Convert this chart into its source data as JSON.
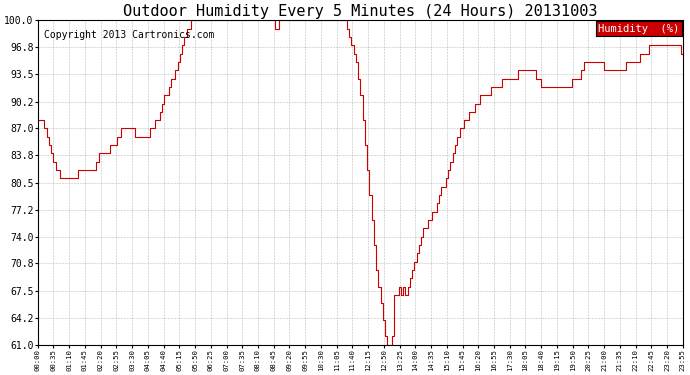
{
  "title": "Outdoor Humidity Every 5 Minutes (24 Hours) 20131003",
  "copyright": "Copyright 2013 Cartronics.com",
  "legend_label": "Humidity  (%)",
  "ylim": [
    61.0,
    100.0
  ],
  "yticks": [
    61.0,
    64.2,
    67.5,
    70.8,
    74.0,
    77.2,
    80.5,
    83.8,
    87.0,
    90.2,
    93.5,
    96.8,
    100.0
  ],
  "line_color": "#cc0000",
  "bg_color": "#ffffff",
  "grid_color": "#aaaaaa",
  "title_color": "#000000",
  "title_fontsize": 11,
  "copyright_fontsize": 7,
  "legend_bg": "#cc0000",
  "legend_text_color": "#ffffff",
  "xtick_labels": [
    "00:00",
    "00:35",
    "01:10",
    "01:45",
    "02:20",
    "02:55",
    "03:30",
    "04:05",
    "04:40",
    "05:15",
    "05:50",
    "06:25",
    "07:00",
    "07:35",
    "08:10",
    "08:45",
    "09:20",
    "09:55",
    "10:30",
    "11:05",
    "11:40",
    "12:15",
    "12:50",
    "13:25",
    "14:00",
    "14:35",
    "15:10",
    "15:45",
    "16:20",
    "16:55",
    "17:30",
    "18:05",
    "18:40",
    "19:15",
    "19:50",
    "20:25",
    "21:00",
    "21:35",
    "22:10",
    "22:45",
    "23:20",
    "23:55"
  ],
  "humidity_values": [
    88,
    88,
    88,
    87,
    86,
    85,
    84,
    83,
    82,
    82,
    81,
    81,
    81,
    81,
    81,
    81,
    81,
    81,
    82,
    82,
    82,
    82,
    82,
    82,
    82,
    82,
    83,
    84,
    84,
    84,
    84,
    84,
    85,
    85,
    85,
    86,
    86,
    87,
    87,
    87,
    87,
    87,
    87,
    86,
    86,
    86,
    86,
    86,
    86,
    86,
    87,
    87,
    88,
    88,
    89,
    90,
    91,
    91,
    92,
    93,
    93,
    94,
    95,
    96,
    97,
    98,
    99,
    99,
    100,
    100,
    100,
    100,
    100,
    100,
    100,
    100,
    100,
    100,
    100,
    100,
    100,
    100,
    100,
    100,
    100,
    100,
    100,
    100,
    100,
    100,
    100,
    100,
    100,
    100,
    100,
    100,
    100,
    100,
    100,
    100,
    100,
    100,
    100,
    100,
    100,
    99,
    99,
    100,
    100,
    100,
    100,
    100,
    100,
    100,
    100,
    100,
    100,
    100,
    100,
    100,
    100,
    100,
    100,
    100,
    100,
    100,
    100,
    100,
    100,
    100,
    100,
    100,
    100,
    100,
    100,
    100,
    100,
    99,
    98,
    97,
    96,
    95,
    93,
    91,
    88,
    85,
    82,
    79,
    76,
    73,
    70,
    68,
    66,
    64,
    62,
    61,
    61,
    62,
    67,
    67,
    68,
    67,
    68,
    67,
    68,
    69,
    70,
    71,
    72,
    73,
    74,
    75,
    75,
    76,
    76,
    77,
    77,
    78,
    79,
    80,
    80,
    81,
    82,
    83,
    84,
    85,
    86,
    87,
    87,
    88,
    88,
    89,
    89,
    89,
    90,
    90,
    91,
    91,
    91,
    91,
    91,
    92,
    92,
    92,
    92,
    92,
    93,
    93,
    93,
    93,
    93,
    93,
    93,
    94,
    94,
    94,
    94,
    94,
    94,
    94,
    94,
    93,
    93,
    92,
    92,
    92,
    92,
    92,
    92,
    92,
    92,
    92,
    92,
    92,
    92,
    92,
    92,
    93,
    93,
    93,
    93,
    94,
    95,
    95,
    95,
    95,
    95,
    95,
    95,
    95,
    95,
    94,
    94,
    94,
    94,
    94,
    94,
    94,
    94,
    94,
    94,
    95,
    95,
    95,
    95,
    95,
    95,
    96,
    96,
    96,
    96,
    97,
    97,
    97,
    97,
    97,
    97,
    97,
    97,
    97,
    97,
    97,
    97,
    97,
    97,
    96,
    96
  ]
}
